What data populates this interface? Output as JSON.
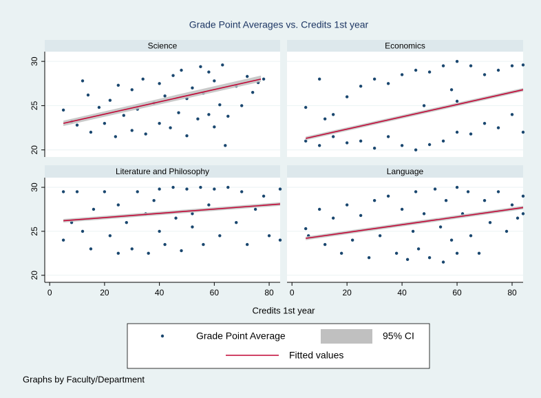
{
  "chart_data": {
    "type": "scatter",
    "title": "Grade Point Averages vs. Credits 1st year",
    "x_label": "Credits 1st year",
    "note": "Graphs by Faculty/Department",
    "xlim": [
      -1.8,
      84
    ],
    "ylim": [
      19.2,
      31.1
    ],
    "xticks": [
      0,
      20,
      40,
      60,
      80
    ],
    "yticks": [
      20,
      25,
      30
    ],
    "legend": [
      {
        "name": "Grade Point Average",
        "color": "#1a476f"
      },
      {
        "name": "95% CI",
        "color": "#c0c0c0"
      },
      {
        "name": "Fitted values",
        "color": "#c10534"
      }
    ],
    "panels": [
      {
        "title": "Science",
        "x": [
          5,
          8,
          10,
          12,
          14,
          15,
          18,
          20,
          22,
          24,
          25,
          27,
          30,
          30,
          32,
          34,
          35,
          38,
          40,
          40,
          42,
          44,
          45,
          47,
          48,
          50,
          50,
          52,
          54,
          55,
          56,
          58,
          58,
          60,
          60,
          62,
          63,
          65,
          68,
          70,
          72,
          74,
          76,
          78,
          64
        ],
        "values": [
          24.5,
          23.2,
          22.8,
          27.8,
          26.2,
          22.0,
          24.8,
          23.0,
          25.6,
          21.5,
          27.3,
          23.9,
          22.2,
          26.8,
          24.6,
          28.0,
          21.8,
          25.3,
          27.5,
          23.0,
          26.1,
          22.5,
          28.4,
          24.2,
          29.0,
          25.8,
          21.6,
          27.0,
          23.5,
          29.4,
          26.4,
          24.0,
          28.8,
          22.6,
          27.8,
          25.1,
          29.6,
          23.8,
          27.2,
          25.0,
          28.3,
          26.5,
          27.6,
          28.0,
          20.5
        ],
        "fit": {
          "x": [
            5,
            77
          ],
          "values": [
            23.0,
            28.0
          ],
          "ci_lower": [
            22.7,
            27.7
          ],
          "ci_upper": [
            23.3,
            28.4
          ]
        }
      },
      {
        "title": "Economics",
        "x": [
          5,
          5,
          10,
          10,
          15,
          15,
          20,
          20,
          25,
          25,
          30,
          30,
          35,
          35,
          40,
          40,
          45,
          45,
          50,
          50,
          55,
          55,
          60,
          60,
          60,
          65,
          65,
          70,
          70,
          75,
          75,
          80,
          80,
          84,
          84,
          12,
          48,
          58
        ],
        "values": [
          21.0,
          24.8,
          20.5,
          28.0,
          21.5,
          24.0,
          20.8,
          26.0,
          21.0,
          27.2,
          20.2,
          28.0,
          21.5,
          27.5,
          20.5,
          28.5,
          20.0,
          29.0,
          20.6,
          28.8,
          21.0,
          29.5,
          22.0,
          30.0,
          25.5,
          21.8,
          29.5,
          23.0,
          28.5,
          22.5,
          29.0,
          24.0,
          29.5,
          22.0,
          29.6,
          23.5,
          25.0,
          26.8
        ],
        "fit": {
          "x": [
            5,
            84
          ],
          "values": [
            21.3,
            26.8
          ],
          "ci_lower": [
            21.1,
            26.6
          ],
          "ci_upper": [
            21.5,
            27.0
          ]
        }
      },
      {
        "title": "Literature and Philosophy",
        "x": [
          5,
          5,
          8,
          10,
          12,
          15,
          16,
          20,
          22,
          25,
          25,
          28,
          30,
          32,
          35,
          36,
          40,
          40,
          42,
          45,
          46,
          48,
          50,
          52,
          55,
          56,
          58,
          60,
          62,
          65,
          68,
          70,
          72,
          75,
          78,
          80,
          84,
          84,
          38,
          52
        ],
        "values": [
          29.5,
          24.0,
          26.0,
          29.5,
          25.0,
          23.0,
          27.5,
          29.5,
          24.5,
          22.5,
          28.0,
          26.0,
          23.0,
          29.5,
          27.0,
          22.5,
          29.8,
          25.0,
          23.5,
          30.0,
          26.5,
          22.8,
          29.8,
          25.5,
          30.0,
          23.5,
          28.0,
          29.8,
          24.5,
          30.0,
          26.0,
          29.5,
          23.5,
          27.5,
          29.0,
          24.5,
          29.8,
          24.0,
          28.5,
          27.0
        ],
        "fit": {
          "x": [
            5,
            84
          ],
          "values": [
            26.2,
            28.1
          ],
          "ci_lower": [
            26.0,
            27.9
          ],
          "ci_upper": [
            26.4,
            28.3
          ]
        }
      },
      {
        "title": "Language",
        "x": [
          5,
          6,
          10,
          12,
          15,
          18,
          20,
          22,
          25,
          28,
          30,
          32,
          35,
          38,
          40,
          42,
          44,
          45,
          46,
          48,
          50,
          52,
          54,
          55,
          56,
          58,
          60,
          60,
          62,
          64,
          65,
          68,
          70,
          72,
          75,
          78,
          80,
          82,
          84,
          84
        ],
        "values": [
          25.3,
          24.5,
          27.5,
          23.5,
          26.5,
          22.5,
          28.0,
          24.0,
          26.8,
          22.0,
          28.5,
          24.5,
          29.0,
          22.5,
          27.5,
          21.8,
          25.0,
          29.5,
          23.0,
          27.0,
          22.0,
          29.8,
          25.5,
          21.5,
          28.5,
          24.0,
          30.0,
          22.5,
          27.0,
          29.5,
          24.5,
          22.5,
          28.5,
          26.0,
          29.5,
          25.0,
          28.0,
          26.5,
          29.0,
          27.0
        ],
        "fit": {
          "x": [
            5,
            84
          ],
          "values": [
            24.2,
            27.7
          ],
          "ci_lower": [
            24.0,
            27.5
          ],
          "ci_upper": [
            24.4,
            27.9
          ]
        }
      }
    ]
  }
}
